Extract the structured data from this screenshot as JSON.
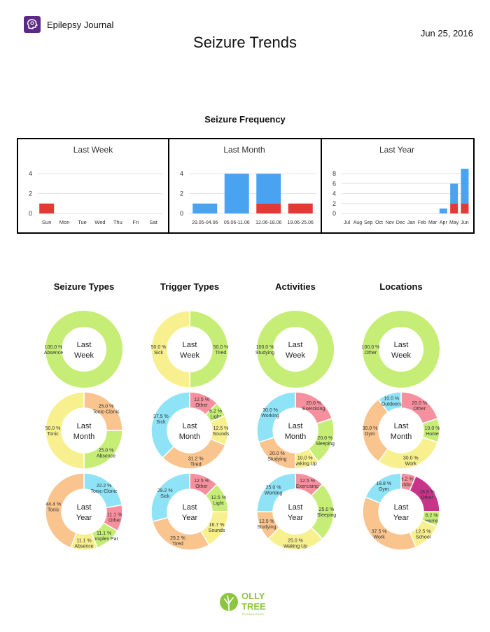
{
  "header": {
    "app_name": "Epilepsy Journal",
    "date": "Jun 25, 2016",
    "title": "Seizure Trends",
    "logo_icon": "brain-head-icon"
  },
  "frequency": {
    "title": "Seizure Frequency",
    "colors": {
      "blue": "#4aa3f0",
      "red": "#e53935"
    }
  },
  "chart_data": [
    {
      "type": "bar",
      "title": "Last Week",
      "categories": [
        "Sun",
        "Mon",
        "Tue",
        "Wed",
        "Thu",
        "Fri",
        "Sat"
      ],
      "yticks": [
        0,
        2,
        4
      ],
      "ylim": [
        0,
        5
      ],
      "series": [
        {
          "values": [
            1,
            0,
            0,
            0,
            0,
            0,
            0
          ]
        },
        {
          "values": [
            0,
            0,
            0,
            0,
            0,
            0,
            0
          ]
        }
      ]
    },
    {
      "type": "bar",
      "title": "Last Month",
      "categories": [
        "29.05-04.06",
        "05.06-11.06",
        "12.06-18.06",
        "19.06-25.06"
      ],
      "yticks": [
        0,
        2,
        4
      ],
      "ylim": [
        0,
        5
      ],
      "series": [
        {
          "values": [
            0,
            0,
            1,
            1
          ]
        },
        {
          "values": [
            1,
            4,
            3,
            0
          ]
        }
      ]
    },
    {
      "type": "bar",
      "title": "Last Year",
      "categories": [
        "Jul",
        "Aug",
        "Sep",
        "Oct",
        "Nov",
        "Dec",
        "Jan",
        "Feb",
        "Mar",
        "Apr",
        "May",
        "Jun"
      ],
      "yticks": [
        0,
        2,
        4,
        6,
        8
      ],
      "ylim": [
        0,
        10
      ],
      "series": [
        {
          "values": [
            0,
            0,
            0,
            0,
            0,
            0,
            0,
            0,
            0,
            0,
            2,
            2
          ]
        },
        {
          "values": [
            0,
            0,
            0,
            0,
            0,
            0,
            0,
            0,
            0,
            1,
            4,
            7
          ]
        }
      ]
    },
    {
      "type": "pie",
      "title": "Seizure Types",
      "charts": [
        {
          "center": [
            "Last",
            "Week"
          ],
          "slices": [
            {
              "label": "Absence",
              "value": 100.0,
              "color": "#c6ee76"
            }
          ]
        },
        {
          "center": [
            "Last",
            "Month"
          ],
          "slices": [
            {
              "label": "Tonic-Clonic",
              "value": 25.0,
              "color": "#f9c48e"
            },
            {
              "label": "Absence",
              "value": 25.0,
              "color": "#c6ee76"
            },
            {
              "label": "Tonic",
              "value": 50.0,
              "color": "#f8f08e"
            }
          ]
        },
        {
          "center": [
            "Last",
            "Year"
          ],
          "slices": [
            {
              "label": "Tonic-Clonic",
              "value": 22.2,
              "color": "#8ee3f7"
            },
            {
              "label": "Other",
              "value": 11.1,
              "color": "#f7909e"
            },
            {
              "label": "Complex Par",
              "value": 11.1,
              "color": "#c6ee76"
            },
            {
              "label": "Absence",
              "value": 11.1,
              "color": "#f8f08e"
            },
            {
              "label": "Tonic",
              "value": 44.4,
              "color": "#f9c48e"
            }
          ]
        }
      ]
    },
    {
      "type": "pie",
      "title": "Trigger Types",
      "charts": [
        {
          "center": [
            "Last",
            "Week"
          ],
          "slices": [
            {
              "label": "Tired",
              "value": 50.0,
              "color": "#c6ee76"
            },
            {
              "label": "Sick",
              "value": 50.0,
              "color": "#f8f08e"
            }
          ]
        },
        {
          "center": [
            "Last",
            "Month"
          ],
          "slices": [
            {
              "label": "Other",
              "value": 12.5,
              "color": "#f7909e"
            },
            {
              "label": "Light",
              "value": 6.2,
              "color": "#c6ee76"
            },
            {
              "label": "Sounds",
              "value": 12.5,
              "color": "#f8f08e"
            },
            {
              "label": "Tired",
              "value": 31.2,
              "color": "#f9c48e"
            },
            {
              "label": "Sick",
              "value": 37.5,
              "color": "#8ee3f7"
            }
          ]
        },
        {
          "center": [
            "Last",
            "Year"
          ],
          "slices": [
            {
              "label": "Other",
              "value": 12.5,
              "color": "#f7909e"
            },
            {
              "label": "Light",
              "value": 12.5,
              "color": "#c6ee76"
            },
            {
              "label": "Sounds",
              "value": 16.7,
              "color": "#f8f08e"
            },
            {
              "label": "Tired",
              "value": 29.2,
              "color": "#f9c48e"
            },
            {
              "label": "Sick",
              "value": 29.2,
              "color": "#8ee3f7"
            }
          ]
        }
      ]
    },
    {
      "type": "pie",
      "title": "Activities",
      "charts": [
        {
          "center": [
            "Last",
            "Week"
          ],
          "slices": [
            {
              "label": "Studying",
              "value": 100.0,
              "color": "#c6ee76"
            }
          ]
        },
        {
          "center": [
            "Last",
            "Month"
          ],
          "slices": [
            {
              "label": "Exercising",
              "value": 20.0,
              "color": "#f7909e"
            },
            {
              "label": "Sleeping",
              "value": 20.0,
              "color": "#c6ee76"
            },
            {
              "label": "Waking Up",
              "value": 10.0,
              "color": "#f8f08e"
            },
            {
              "label": "Studying",
              "value": 20.0,
              "color": "#f9c48e"
            },
            {
              "label": "Working",
              "value": 30.0,
              "color": "#8ee3f7"
            }
          ]
        },
        {
          "center": [
            "Last",
            "Year"
          ],
          "slices": [
            {
              "label": "Exercising",
              "value": 12.5,
              "color": "#f7909e"
            },
            {
              "label": "Sleeping",
              "value": 25.0,
              "color": "#c6ee76"
            },
            {
              "label": "Waking Up",
              "value": 25.0,
              "color": "#f8f08e"
            },
            {
              "label": "Studying",
              "value": 12.5,
              "color": "#f9c48e"
            },
            {
              "label": "Working",
              "value": 25.0,
              "color": "#8ee3f7"
            }
          ]
        }
      ]
    },
    {
      "type": "pie",
      "title": "Locations",
      "charts": [
        {
          "center": [
            "Last",
            "Week"
          ],
          "slices": [
            {
              "label": "Other",
              "value": 100.0,
              "color": "#c6ee76"
            }
          ]
        },
        {
          "center": [
            "Last",
            "Month"
          ],
          "slices": [
            {
              "label": "Other",
              "value": 20.0,
              "color": "#f7909e"
            },
            {
              "label": "Home",
              "value": 10.0,
              "color": "#c6ee76"
            },
            {
              "label": "Work",
              "value": 30.0,
              "color": "#f8f08e"
            },
            {
              "label": "Gym",
              "value": 30.0,
              "color": "#f9c48e"
            },
            {
              "label": "Outdoors",
              "value": 10.0,
              "color": "#8ee3f7"
            }
          ]
        },
        {
          "center": [
            "Last",
            "Year"
          ],
          "slices": [
            {
              "label": "Outdoors",
              "value": 6.2,
              "color": "#f7909e"
            },
            {
              "label": "Other",
              "value": 18.8,
              "color": "#c8348a"
            },
            {
              "label": "Home",
              "value": 6.2,
              "color": "#c6ee76"
            },
            {
              "label": "School",
              "value": 12.5,
              "color": "#f8f08e"
            },
            {
              "label": "Work",
              "value": 37.5,
              "color": "#f9c48e"
            },
            {
              "label": "Gym",
              "value": 18.8,
              "color": "#8ee3f7"
            }
          ]
        }
      ]
    }
  ],
  "footer": {
    "brand_line1": "OLLY",
    "brand_line2": "TREE",
    "brand_tagline": "TECHNOLOGIES",
    "logo_icon": "tree-logo-icon",
    "brand_color": "#8cc63f"
  }
}
